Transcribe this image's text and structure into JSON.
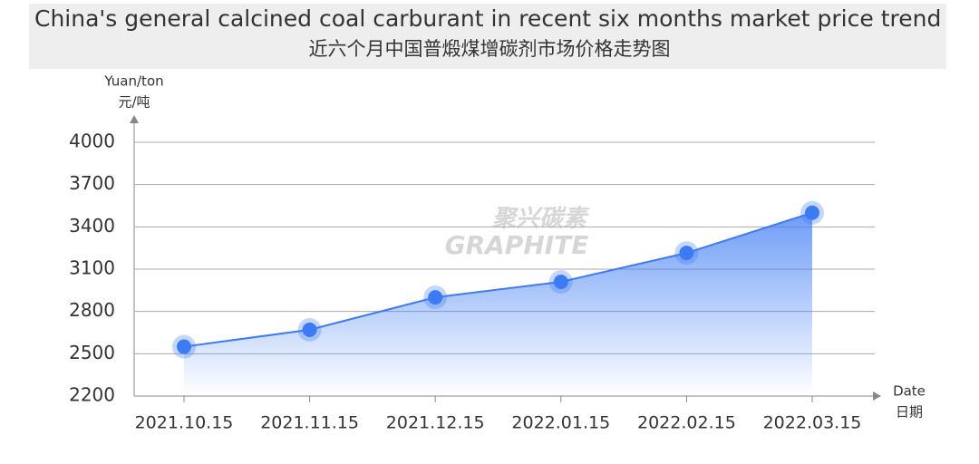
{
  "chart_data": {
    "type": "line",
    "title": "China's general calcined coal carburant in recent six months market price trend",
    "subtitle": "近六个月中国普煅煤增碳剂市场价格走势图",
    "ylabel": [
      "Yuan/ton",
      "元/吨"
    ],
    "xlabel": [
      "Date",
      "日期"
    ],
    "watermark": [
      "聚兴碳素",
      "GRAPHITE"
    ],
    "categories": [
      "2021.10.15",
      "2021.11.15",
      "2021.12.15",
      "2022.01.15",
      "2022.02.15",
      "2022.03.15"
    ],
    "values": [
      2550,
      2670,
      2900,
      3010,
      3215,
      3500
    ],
    "color": "#3d7bf5",
    "ylim": [
      2200,
      4000
    ],
    "yticks": [
      2200,
      2500,
      2800,
      3100,
      3400,
      3700,
      4000
    ],
    "grid": true
  }
}
